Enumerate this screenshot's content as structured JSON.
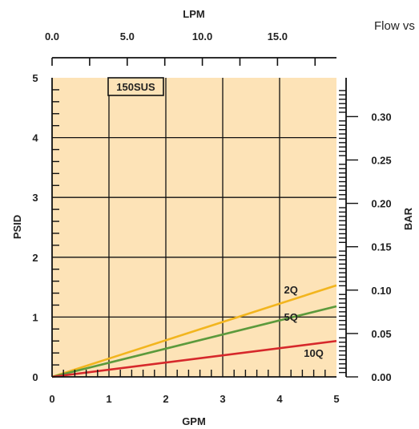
{
  "chart_data": {
    "type": "line",
    "title": "Flow vs",
    "xlabel": "GPM",
    "ylabel": "PSID",
    "x2label": "LPM",
    "y2label": "BAR",
    "xlim": [
      0,
      5
    ],
    "ylim": [
      0,
      5
    ],
    "x_ticks": [
      "0",
      "1",
      "2",
      "3",
      "4",
      "5"
    ],
    "y_ticks": [
      "0",
      "1",
      "2",
      "3",
      "4",
      "5"
    ],
    "x2_ticks": [
      "0.0",
      "5.0",
      "10.0",
      "15.0"
    ],
    "y2_ticks": [
      "0.00",
      "0.05",
      "0.10",
      "0.15",
      "0.20",
      "0.25",
      "0.30"
    ],
    "grid": true,
    "annotation": "150SUS",
    "series": [
      {
        "name": "2Q",
        "x": [
          0,
          5
        ],
        "y": [
          0,
          1.53
        ],
        "color": "#f2b51e"
      },
      {
        "name": "5Q",
        "x": [
          0,
          5
        ],
        "y": [
          0,
          1.18
        ],
        "color": "#5c9a3c"
      },
      {
        "name": "10Q",
        "x": [
          0,
          5
        ],
        "y": [
          0,
          0.6
        ],
        "color": "#d6282b"
      }
    ],
    "colors": {
      "plot_bg": "#fde3b7",
      "grid": "#111111",
      "axis": "#111111"
    }
  }
}
